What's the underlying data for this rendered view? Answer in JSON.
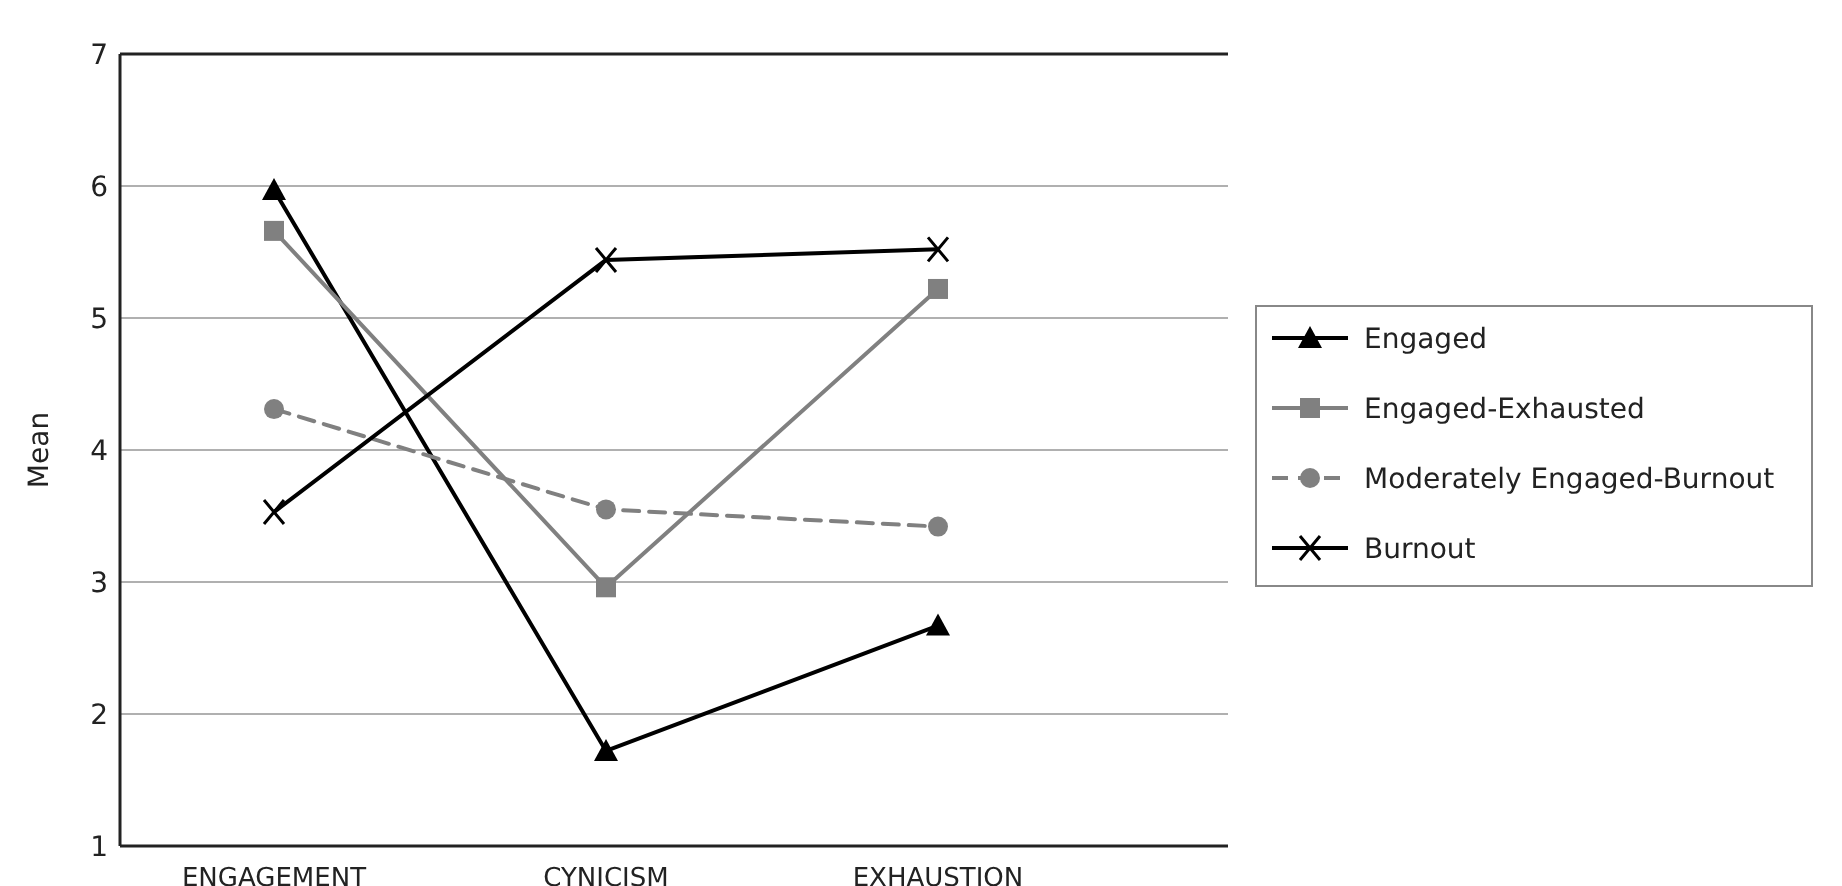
{
  "chart_data": {
    "type": "line",
    "ylabel": "Mean",
    "categories": [
      "ENGAGEMENT",
      "CYNICISM",
      "EXHAUSTION"
    ],
    "ylim": [
      1,
      7
    ],
    "yticks": [
      1,
      2,
      3,
      4,
      5,
      6,
      7
    ],
    "grid": "y",
    "legend": "right",
    "series": [
      {
        "name": "Engaged",
        "color": "#000000",
        "marker": "triangle",
        "line_style": "solid",
        "values": [
          5.97,
          1.72,
          2.67
        ]
      },
      {
        "name": "Engaged-Exhausted",
        "color": "#808080",
        "marker": "square",
        "line_style": "solid",
        "values": [
          5.66,
          2.96,
          5.22
        ]
      },
      {
        "name": "Moderately Engaged-Burnout",
        "color": "#808080",
        "marker": "circle",
        "line_style": "dashed",
        "values": [
          4.31,
          3.55,
          3.42
        ]
      },
      {
        "name": "Burnout",
        "color": "#000000",
        "marker": "cross",
        "line_style": "solid",
        "values": [
          3.53,
          5.44,
          5.52
        ]
      }
    ]
  }
}
